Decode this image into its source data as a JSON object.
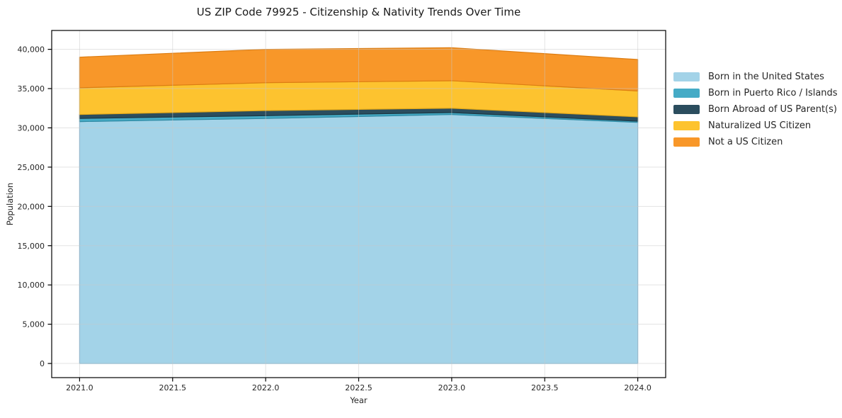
{
  "chart_data": {
    "type": "area",
    "stacked": true,
    "title": "US ZIP Code 79925 - Citizenship & Nativity Trends Over Time",
    "xlabel": "Year",
    "ylabel": "Population",
    "x": [
      2021,
      2022,
      2023,
      2024
    ],
    "series": [
      {
        "name": "Born in the United States",
        "color": "#a3d3e8",
        "edge": "#74b0d2",
        "values": [
          30800,
          31200,
          31700,
          30700
        ]
      },
      {
        "name": "Born in Puerto Rico / Islands",
        "color": "#45abc6",
        "edge": "#2f8aa3",
        "values": [
          400,
          350,
          250,
          150
        ]
      },
      {
        "name": "Born Abroad of US Parent(s)",
        "color": "#2b4d5e",
        "edge": "#1c3743",
        "values": [
          500,
          650,
          550,
          550
        ]
      },
      {
        "name": "Naturalized US Citizen",
        "color": "#fdc32f",
        "edge": "#e2a81a",
        "values": [
          3400,
          3550,
          3500,
          3300
        ]
      },
      {
        "name": "Not a US Citizen",
        "color": "#f89729",
        "edge": "#dd7d12",
        "values": [
          3900,
          4250,
          4200,
          4000
        ]
      }
    ],
    "totals_by_year": [
      39000,
      40000,
      40200,
      38700
    ],
    "xlim": [
      2020.85,
      2024.15
    ],
    "ylim": [
      -1800,
      42400
    ],
    "xticks": {
      "values": [
        2021.0,
        2021.5,
        2022.0,
        2022.5,
        2023.0,
        2023.5,
        2024.0
      ],
      "labels": [
        "2021.0",
        "2021.5",
        "2022.0",
        "2022.5",
        "2023.0",
        "2023.5",
        "2024.0"
      ]
    },
    "yticks": {
      "values": [
        0,
        5000,
        10000,
        15000,
        20000,
        25000,
        30000,
        35000,
        40000
      ],
      "labels": [
        "0",
        "5,000",
        "10,000",
        "15,000",
        "20,000",
        "25,000",
        "30,000",
        "35,000",
        "40,000"
      ]
    },
    "grid": true,
    "legend_position": "right-outside",
    "colors": {
      "spine": "#000000",
      "tick_text": "#262626",
      "gridline": "#c8c8c8",
      "background": "#ffffff"
    }
  }
}
